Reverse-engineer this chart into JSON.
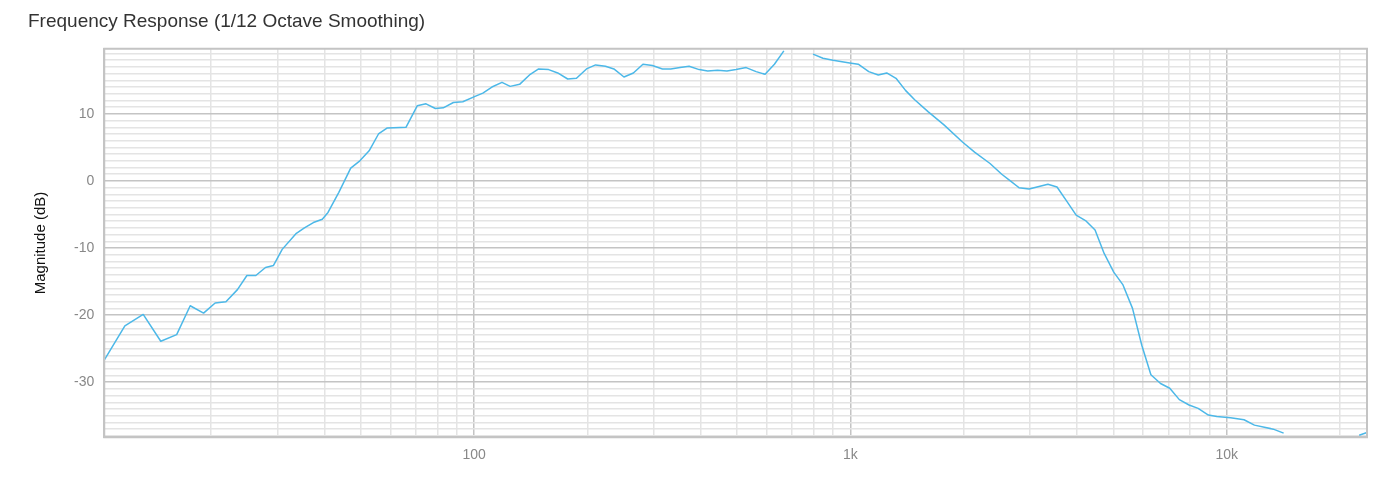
{
  "chart_data": {
    "type": "line",
    "title": "Frequency Response (1/12 Octave Smoothing)",
    "ylabel": "Magnitude (dB)",
    "x": [
      10.4,
      11.8,
      13.2,
      14.7,
      16.2,
      17.6,
      19.1,
      20.5,
      21.9,
      23.5,
      24.9,
      26.3,
      27.9,
      29.3,
      30.9,
      33.7,
      35.4,
      37.4,
      39.5,
      40.9,
      43.7,
      47,
      49.7,
      52.6,
      55.7,
      58.8,
      65.9,
      70.6,
      74.5,
      78.9,
      82.8,
      88.1,
      93.3,
      100.6,
      105.5,
      111.5,
      118.6,
      124.7,
      132.1,
      141,
      148.4,
      157.8,
      166.8,
      177.3,
      187.1,
      198.9,
      210.3,
      223.4,
      235.2,
      250.2,
      265,
      281,
      297.7,
      316.6,
      333.1,
      352.6,
      372.7,
      396.4,
      417.6,
      443.6,
      469.7,
      496.6,
      528.4,
      561.6,
      593.2,
      628.2,
      665.5,
      690,
      748,
      795.6,
      845.5,
      899.3,
      995.5,
      1049,
      1119,
      1186,
      1249,
      1322,
      1401,
      1482,
      1611,
      1770,
      1985,
      2138,
      2350,
      2525,
      2661,
      2805,
      2985,
      3349,
      3541,
      3757,
      3981,
      4215,
      4469,
      4725,
      5010,
      5302,
      5620,
      5948,
      6290,
      6672,
      7059,
      7485,
      7942,
      8398,
      8941,
      9412,
      10240,
      11120,
      11850,
      13300,
      14170,
      15560,
      21500,
      22500,
      23600
    ],
    "series": [
      {
        "color": "#4cb8e8",
        "values": [
          -26.7,
          -21.6,
          -19.9,
          -23.9,
          -22.9,
          -18.6,
          -19.7,
          -18.2,
          -18,
          -16.2,
          -14.1,
          -14.1,
          -12.9,
          -12.6,
          -10.2,
          -7.8,
          -7,
          -6.2,
          -5.7,
          -4.7,
          -1.7,
          1.9,
          3,
          4.5,
          7,
          7.9,
          8,
          11.2,
          11.5,
          10.8,
          10.9,
          11.7,
          11.8,
          12.6,
          13.1,
          14,
          14.7,
          14.1,
          14.4,
          15.9,
          16.7,
          16.6,
          16.1,
          15.2,
          15.3,
          16.7,
          17.3,
          17.1,
          16.7,
          15.5,
          16.1,
          17.4,
          17.2,
          16.7,
          16.7,
          16.9,
          17.1,
          16.6,
          16.4,
          16.5,
          16.4,
          16.6,
          16.9,
          16.3,
          15.9,
          17.4,
          19.4,
          null,
          null,
          18.9,
          18.3,
          18,
          17.6,
          17.4,
          16.3,
          15.8,
          16.1,
          15.3,
          13.5,
          12.1,
          10.3,
          8.4,
          5.8,
          4.3,
          2.6,
          1,
          0,
          -1,
          -1.2,
          -0.5,
          -0.9,
          -3,
          -5.1,
          -5.9,
          -7.3,
          -10.8,
          -13.6,
          -15.5,
          -19,
          -24.5,
          -28.9,
          -30.2,
          -30.9,
          -32.6,
          -33.4,
          -33.9,
          -34.9,
          -35.1,
          -35.3,
          -35.6,
          -36.4,
          -37,
          -37.6,
          null,
          null,
          -37.9,
          -37.5
        ]
      }
    ],
    "log": "x",
    "marker": "none",
    "grid": true,
    "xlim": [
      10.4,
      23600
    ],
    "xticks": [
      {
        "value": 20,
        "label": null
      },
      {
        "value": 30,
        "label": null
      },
      {
        "value": 40,
        "label": null
      },
      {
        "value": 50,
        "label": null
      },
      {
        "value": 60,
        "label": null
      },
      {
        "value": 70,
        "label": null
      },
      {
        "value": 80,
        "label": null
      },
      {
        "value": 90,
        "label": null
      },
      100,
      {
        "value": 200,
        "label": null
      },
      {
        "value": 300,
        "label": null
      },
      {
        "value": 400,
        "label": null
      },
      {
        "value": 500,
        "label": null
      },
      {
        "value": 600,
        "label": null
      },
      {
        "value": 700,
        "label": null
      },
      {
        "value": 800,
        "label": null
      },
      {
        "value": 900,
        "label": null
      },
      {
        "value": 1000,
        "label": "1k"
      },
      {
        "value": 2000,
        "label": null
      },
      {
        "value": 3000,
        "label": null
      },
      {
        "value": 4000,
        "label": null
      },
      {
        "value": 5000,
        "label": null
      },
      {
        "value": 6000,
        "label": null
      },
      {
        "value": 7000,
        "label": null
      },
      {
        "value": 8000,
        "label": null
      },
      {
        "value": 9000,
        "label": null
      },
      {
        "value": 10000,
        "label": "10k"
      },
      {
        "value": 20000,
        "label": null
      }
    ],
    "ylim": [
      -38.2,
      19.7
    ],
    "yticks": [
      {
        "value": -38,
        "label": null
      },
      {
        "value": -37,
        "label": null
      },
      {
        "value": -36,
        "label": null
      },
      {
        "value": -35,
        "label": null
      },
      {
        "value": -34,
        "label": null
      },
      {
        "value": -33,
        "label": null
      },
      {
        "value": -32,
        "label": null
      },
      {
        "value": -31,
        "label": null
      },
      -30,
      {
        "value": -29,
        "label": null
      },
      {
        "value": -28,
        "label": null
      },
      {
        "value": -27,
        "label": null
      },
      {
        "value": -26,
        "label": null
      },
      {
        "value": -25,
        "label": null
      },
      {
        "value": -24,
        "label": null
      },
      {
        "value": -23,
        "label": null
      },
      {
        "value": -22,
        "label": null
      },
      {
        "value": -21,
        "label": null
      },
      -20,
      {
        "value": -19,
        "label": null
      },
      {
        "value": -18,
        "label": null
      },
      {
        "value": -17,
        "label": null
      },
      {
        "value": -16,
        "label": null
      },
      {
        "value": -15,
        "label": null
      },
      {
        "value": -14,
        "label": null
      },
      {
        "value": -13,
        "label": null
      },
      {
        "value": -12,
        "label": null
      },
      {
        "value": -11,
        "label": null
      },
      -10,
      {
        "value": -9,
        "label": null
      },
      {
        "value": -8,
        "label": null
      },
      {
        "value": -7,
        "label": null
      },
      {
        "value": -6,
        "label": null
      },
      {
        "value": -5,
        "label": null
      },
      {
        "value": -4,
        "label": null
      },
      {
        "value": -3,
        "label": null
      },
      {
        "value": -2,
        "label": null
      },
      {
        "value": -1,
        "label": null
      },
      0,
      {
        "value": 1,
        "label": null
      },
      {
        "value": 2,
        "label": null
      },
      {
        "value": 3,
        "label": null
      },
      {
        "value": 4,
        "label": null
      },
      {
        "value": 5,
        "label": null
      },
      {
        "value": 6,
        "label": null
      },
      {
        "value": 7,
        "label": null
      },
      {
        "value": 8,
        "label": null
      },
      {
        "value": 9,
        "label": null
      },
      10,
      {
        "value": 11,
        "label": null
      },
      {
        "value": 12,
        "label": null
      },
      {
        "value": 13,
        "label": null
      },
      {
        "value": 14,
        "label": null
      },
      {
        "value": 15,
        "label": null
      },
      {
        "value": 16,
        "label": null
      },
      {
        "value": 17,
        "label": null
      },
      {
        "value": 18,
        "label": null
      },
      {
        "value": 19,
        "label": null
      }
    ]
  }
}
